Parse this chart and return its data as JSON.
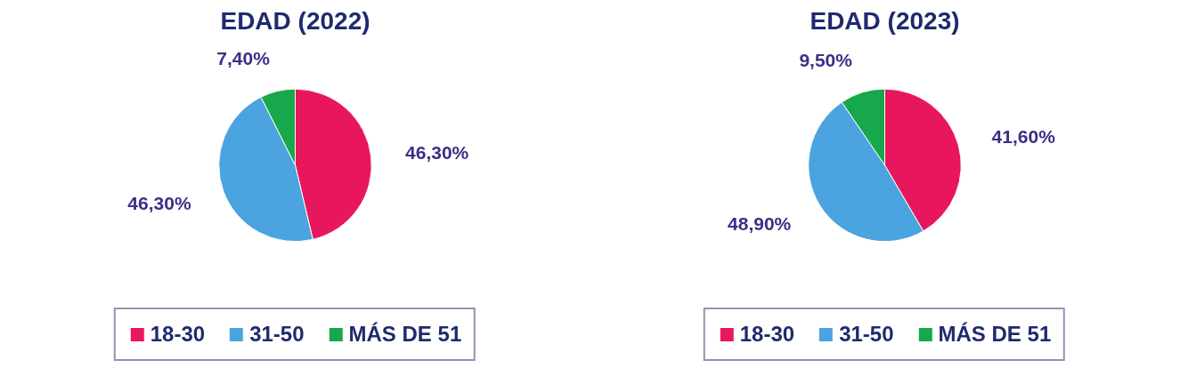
{
  "chart_data": [
    {
      "type": "pie",
      "title": "EDAD (2022)",
      "categories": [
        "18-30",
        "31-50",
        "MÁS DE 51"
      ],
      "values": [
        46.3,
        46.3,
        7.4
      ],
      "colors": [
        "#e8175d",
        "#4ba3e0",
        "#16a84b"
      ],
      "value_labels": [
        "46,30%",
        "46,30%",
        "7,40%"
      ],
      "legend": "bottom"
    },
    {
      "type": "pie",
      "title": "EDAD (2023)",
      "categories": [
        "18-30",
        "31-50",
        "MÁS DE 51"
      ],
      "values": [
        41.6,
        48.9,
        9.5
      ],
      "colors": [
        "#e8175d",
        "#4ba3e0",
        "#16a84b"
      ],
      "value_labels": [
        "41,60%",
        "48,90%",
        "9,50%"
      ],
      "legend": "bottom"
    }
  ]
}
